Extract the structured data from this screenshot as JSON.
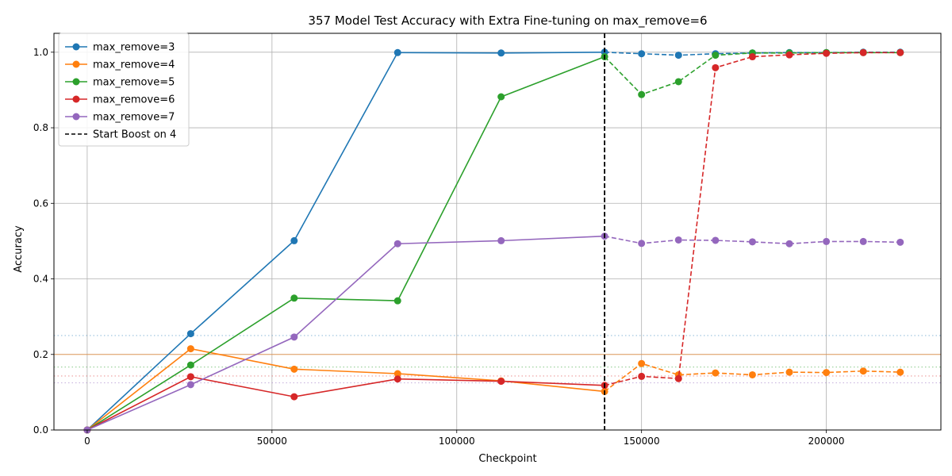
{
  "chart_data": {
    "type": "line",
    "title": "357 Model Test Accuracy with Extra Fine-tuning on max_remove=6",
    "xlabel": "Checkpoint",
    "ylabel": "Accuracy",
    "xlim": [
      -9000,
      231000
    ],
    "ylim": [
      0,
      1.05
    ],
    "x_ticks": [
      0,
      50000,
      100000,
      150000,
      200000
    ],
    "x_tick_labels": [
      "0",
      "50000",
      "100000",
      "150000",
      "200000"
    ],
    "y_ticks": [
      0.0,
      0.2,
      0.4,
      0.6,
      0.8,
      1.0
    ],
    "y_tick_labels": [
      "0.0",
      "0.2",
      "0.4",
      "0.6",
      "0.8",
      "1.0"
    ],
    "grid": true,
    "legend_position": "top-left",
    "boost_line": {
      "x": 140000,
      "label": "Start Boost on 4",
      "color": "#000000",
      "style": "dashed"
    },
    "baselines": [
      {
        "y": 0.25,
        "color": "#1f77b4",
        "style": "dotted"
      },
      {
        "y": 0.2,
        "color": "#ff7f0e",
        "style": "solid"
      },
      {
        "y": 0.1667,
        "color": "#2ca02c",
        "style": "dotted"
      },
      {
        "y": 0.1429,
        "color": "#d62728",
        "style": "dotted"
      },
      {
        "y": 0.125,
        "color": "#9467bd",
        "style": "dotted"
      }
    ],
    "series": [
      {
        "name": "max_remove=3",
        "color": "#1f77b4",
        "x": [
          0,
          28000,
          56000,
          84000,
          112000,
          140000
        ],
        "y": [
          0.0,
          0.255,
          0.501,
          0.999,
          0.998,
          1.0
        ],
        "x_boost": [
          140000,
          150000,
          160000,
          170000,
          180000,
          190000,
          200000,
          210000,
          220000
        ],
        "y_boost": [
          1.0,
          0.996,
          0.992,
          0.996,
          0.998,
          0.999,
          0.999,
          1.0,
          1.0
        ]
      },
      {
        "name": "max_remove=4",
        "color": "#ff7f0e",
        "x": [
          0,
          28000,
          56000,
          84000,
          112000,
          140000
        ],
        "y": [
          0.0,
          0.215,
          0.161,
          0.149,
          0.13,
          0.102
        ],
        "x_boost": [
          140000,
          150000,
          160000,
          170000,
          180000,
          190000,
          200000,
          210000,
          220000
        ],
        "y_boost": [
          0.102,
          0.176,
          0.146,
          0.151,
          0.146,
          0.153,
          0.152,
          0.156,
          0.153
        ]
      },
      {
        "name": "max_remove=5",
        "color": "#2ca02c",
        "x": [
          0,
          28000,
          56000,
          84000,
          112000,
          140000
        ],
        "y": [
          0.0,
          0.172,
          0.349,
          0.342,
          0.882,
          0.988
        ],
        "x_boost": [
          140000,
          150000,
          160000,
          170000,
          180000,
          190000,
          200000,
          210000,
          220000
        ],
        "y_boost": [
          0.988,
          0.888,
          0.922,
          0.992,
          0.998,
          0.998,
          0.999,
          0.999,
          0.999
        ]
      },
      {
        "name": "max_remove=6",
        "color": "#d62728",
        "x": [
          0,
          28000,
          56000,
          84000,
          112000,
          140000
        ],
        "y": [
          0.0,
          0.141,
          0.088,
          0.135,
          0.129,
          0.118
        ],
        "x_boost": [
          140000,
          150000,
          160000,
          170000,
          180000,
          190000,
          200000,
          210000,
          220000
        ],
        "y_boost": [
          0.118,
          0.142,
          0.136,
          0.959,
          0.988,
          0.993,
          0.997,
          0.999,
          0.999
        ]
      },
      {
        "name": "max_remove=7",
        "color": "#9467bd",
        "x": [
          0,
          28000,
          56000,
          84000,
          112000,
          140000
        ],
        "y": [
          0.0,
          0.12,
          0.246,
          0.493,
          0.501,
          0.513
        ],
        "x_boost": [
          140000,
          150000,
          160000,
          170000,
          180000,
          190000,
          200000,
          210000,
          220000
        ],
        "y_boost": [
          0.513,
          0.494,
          0.503,
          0.502,
          0.498,
          0.493,
          0.499,
          0.499,
          0.497
        ]
      }
    ]
  }
}
